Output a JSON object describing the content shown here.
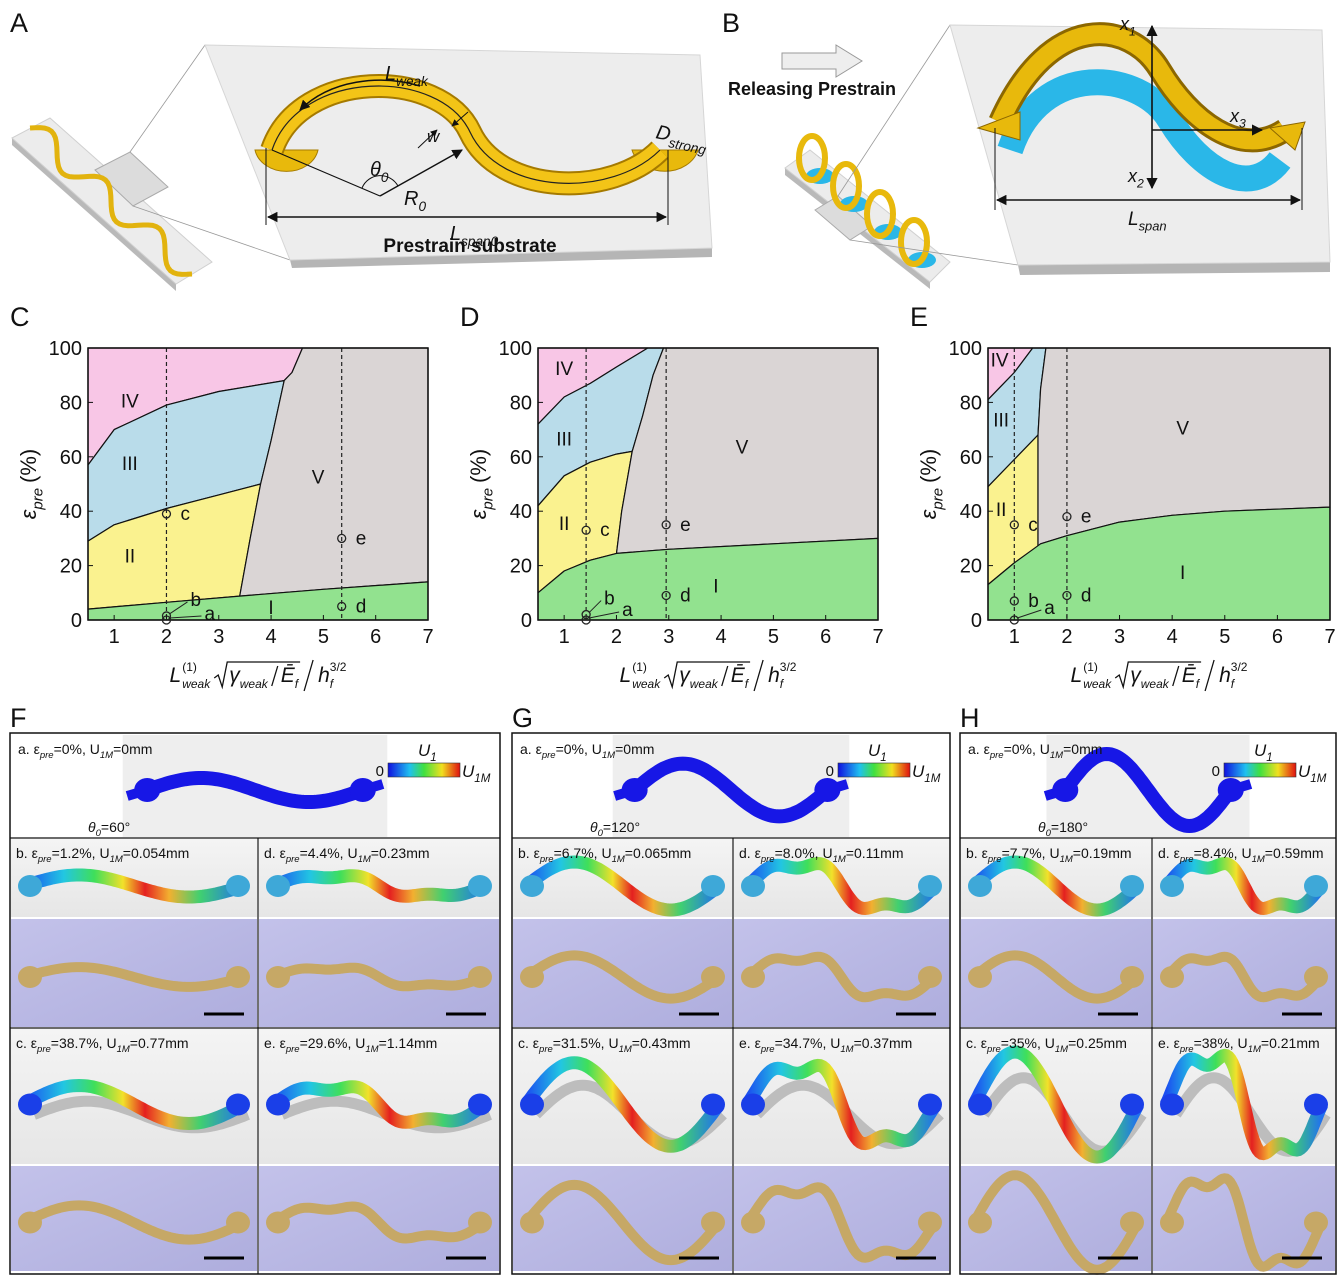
{
  "panel_a": {
    "letter": "A",
    "l_weak": [
      "L",
      "weak"
    ],
    "w": "w",
    "theta0": [
      "θ",
      "0"
    ],
    "r0": [
      "R",
      "0"
    ],
    "d_strong": [
      "D",
      "strong"
    ],
    "l_span0": [
      "L",
      "span0"
    ],
    "substrate": "Prestrain substrate"
  },
  "panel_b": {
    "letter": "B",
    "releasing": "Releasing Prestrain",
    "x1": [
      "x",
      "1"
    ],
    "x2": [
      "x",
      "2"
    ],
    "x3": [
      "x",
      "3"
    ],
    "l_span": [
      "L",
      "span"
    ]
  },
  "chart_data": [
    {
      "letter": "C",
      "type": "area",
      "xlim": [
        0.5,
        7
      ],
      "ylim": [
        0,
        100
      ],
      "xticks": [
        1,
        2,
        3,
        4,
        5,
        6,
        7
      ],
      "yticks": [
        0,
        20,
        40,
        60,
        80,
        100
      ],
      "y_label": [
        "ε",
        "pre",
        "(%)"
      ],
      "x_label": [
        "L",
        "(1)",
        "weak",
        "γ",
        "weak",
        "Ē",
        "f",
        "h",
        "f",
        "3/2"
      ],
      "regions": [
        {
          "name": "IV",
          "color": "#f8c6e6",
          "x": [
            0.5,
            1,
            2,
            3,
            4.25,
            4.4,
            4.6,
            0.5
          ],
          "y": [
            57,
            70,
            79,
            84,
            88,
            91,
            100,
            100
          ]
        },
        {
          "name": "III",
          "color": "#b9dcea",
          "x": [
            0.5,
            1,
            2,
            3,
            3.8,
            4.0,
            4.25,
            3,
            2,
            1,
            0.5
          ],
          "y": [
            29,
            35,
            41,
            46,
            50,
            66,
            88,
            84,
            79,
            70,
            57
          ]
        },
        {
          "name": "II",
          "color": "#faf28f",
          "x": [
            0.5,
            2,
            3.4,
            3.6,
            3.8,
            3,
            2,
            1,
            0.5
          ],
          "y": [
            4,
            6.5,
            8.8,
            30,
            50,
            46,
            41,
            35,
            29
          ]
        },
        {
          "name": "V",
          "color": "#dad5d5",
          "x": [
            3.4,
            5,
            7,
            7,
            4.6,
            4.4,
            4.25,
            4.0,
            3.8,
            3.6
          ],
          "y": [
            8.8,
            11.3,
            14,
            100,
            100,
            91,
            88,
            66,
            50,
            30
          ]
        },
        {
          "name": "I",
          "color": "#92e28f",
          "x": [
            0.5,
            7,
            7,
            5,
            3.4,
            2,
            0.5
          ],
          "y": [
            0,
            0,
            14,
            11.3,
            8.8,
            6.5,
            4
          ]
        }
      ],
      "guides": [
        2,
        5.35
      ],
      "points": {
        "labels": [
          "a",
          "b",
          "c",
          "d",
          "e"
        ],
        "x": [
          2,
          2,
          2,
          5.35,
          5.35
        ],
        "y": [
          0,
          1.5,
          39,
          5,
          30
        ]
      }
    },
    {
      "letter": "D",
      "type": "area",
      "xlim": [
        0.5,
        7
      ],
      "ylim": [
        0,
        100
      ],
      "xticks": [
        1,
        2,
        3,
        4,
        5,
        6,
        7
      ],
      "yticks": [
        0,
        20,
        40,
        60,
        80,
        100
      ],
      "y_label": [
        "ε",
        "pre",
        "(%)"
      ],
      "x_label": [
        "L",
        "(1)",
        "weak",
        "γ",
        "weak",
        "Ē",
        "f",
        "h",
        "f",
        "3/2"
      ],
      "regions": [
        {
          "name": "IV",
          "color": "#f8c6e6",
          "x": [
            0.5,
            1,
            1.5,
            2,
            2.6,
            0.5
          ],
          "y": [
            72,
            82,
            87,
            93,
            100,
            100
          ]
        },
        {
          "name": "III",
          "color": "#b9dcea",
          "x": [
            0.5,
            1,
            1.5,
            2,
            2.3,
            2.5,
            2.7,
            2.9,
            2.6,
            2,
            1.5,
            1,
            0.5
          ],
          "y": [
            42,
            53,
            58,
            61,
            62,
            75,
            90,
            100,
            100,
            93,
            87,
            82,
            72
          ]
        },
        {
          "name": "II",
          "color": "#faf28f",
          "x": [
            0.5,
            1,
            1.5,
            2,
            2.1,
            2.3,
            2,
            1.5,
            1,
            0.5
          ],
          "y": [
            10,
            18,
            22,
            24.5,
            40,
            62,
            61,
            58,
            53,
            42
          ]
        },
        {
          "name": "V",
          "color": "#dad5d5",
          "x": [
            2,
            3,
            5,
            7,
            7,
            2.9,
            2.7,
            2.5,
            2.3,
            2.1
          ],
          "y": [
            24.5,
            26,
            28,
            30,
            100,
            100,
            90,
            75,
            62,
            40
          ]
        },
        {
          "name": "I",
          "color": "#92e28f",
          "x": [
            0.5,
            7,
            7,
            5,
            3,
            2,
            1.5,
            1,
            0.5
          ],
          "y": [
            0,
            0,
            30,
            28,
            26,
            24.5,
            22,
            18,
            10
          ]
        }
      ],
      "guides": [
        1.42,
        2.95
      ],
      "points": {
        "labels": [
          "a",
          "b",
          "c",
          "d",
          "e"
        ],
        "x": [
          1.42,
          1.42,
          1.42,
          2.95,
          2.95
        ],
        "y": [
          0,
          2,
          33,
          9,
          35
        ]
      }
    },
    {
      "letter": "E",
      "type": "area",
      "xlim": [
        0.5,
        7
      ],
      "ylim": [
        0,
        100
      ],
      "xticks": [
        1,
        2,
        3,
        4,
        5,
        6,
        7
      ],
      "yticks": [
        0,
        20,
        40,
        60,
        80,
        100
      ],
      "y_label": [
        "ε",
        "pre",
        "(%)"
      ],
      "x_label": [
        "L",
        "(1)",
        "weak",
        "γ",
        "weak",
        "Ē",
        "f",
        "h",
        "f",
        "3/2"
      ],
      "regions": [
        {
          "name": "IV",
          "color": "#f8c6e6",
          "x": [
            0.5,
            1,
            1.35,
            0.5
          ],
          "y": [
            81,
            91,
            100,
            100
          ]
        },
        {
          "name": "III",
          "color": "#b9dcea",
          "x": [
            0.5,
            1,
            1.45,
            1.5,
            1.6,
            1.35,
            1,
            0.5
          ],
          "y": [
            49,
            59,
            68,
            85,
            100,
            100,
            91,
            81
          ]
        },
        {
          "name": "II",
          "color": "#faf28f",
          "x": [
            0.5,
            1,
            1.45,
            1.45,
            1,
            0.5
          ],
          "y": [
            13,
            21,
            27,
            68,
            59,
            49
          ]
        },
        {
          "name": "V",
          "color": "#dad5d5",
          "x": [
            1.45,
            1.5,
            2,
            3,
            4,
            5,
            7,
            7,
            1.6,
            1.5,
            1.45
          ],
          "y": [
            27,
            28,
            31,
            36,
            38.5,
            40,
            41.5,
            100,
            100,
            85,
            68
          ]
        },
        {
          "name": "I",
          "color": "#92e28f",
          "x": [
            0.5,
            7,
            7,
            5,
            4,
            3,
            2,
            1.5,
            1,
            0.5
          ],
          "y": [
            0,
            0,
            41.5,
            40,
            38.5,
            36,
            31,
            28,
            21,
            13
          ]
        }
      ],
      "guides": [
        1,
        2
      ],
      "points": {
        "labels": [
          "a",
          "b",
          "c",
          "d",
          "e"
        ],
        "x": [
          1,
          1,
          1,
          2,
          2
        ],
        "y": [
          0,
          7,
          35,
          9,
          38
        ]
      }
    }
  ],
  "figure_panels": [
    {
      "letter": "F",
      "theta": [
        "θ",
        "0",
        "=60°"
      ],
      "legend": {
        "title": [
          "U",
          "1"
        ],
        "zero": "0",
        "max": [
          "U",
          "1M"
        ]
      },
      "cases": {
        "a": [
          "a. ε",
          "pre",
          "=0%, U",
          "1M",
          "=0mm"
        ],
        "b": [
          "b. ε",
          "pre",
          "=1.2%, U",
          "1M",
          "=0.054mm"
        ],
        "d": [
          "d. ε",
          "pre",
          "=4.4%, U",
          "1M",
          "=0.23mm"
        ],
        "c": [
          "c. ε",
          "pre",
          "=38.7%, U",
          "1M",
          "=0.77mm"
        ],
        "e": [
          "e. ε",
          "pre",
          "=29.6%, U",
          "1M",
          "=1.14mm"
        ]
      }
    },
    {
      "letter": "G",
      "theta": [
        "θ",
        "0",
        "=120°"
      ],
      "legend": {
        "title": [
          "U",
          "1"
        ],
        "zero": "0",
        "max": [
          "U",
          "1M"
        ]
      },
      "cases": {
        "a": [
          "a. ε",
          "pre",
          "=0%, U",
          "1M",
          "=0mm"
        ],
        "b": [
          "b. ε",
          "pre",
          "=6.7%, U",
          "1M",
          "=0.065mm"
        ],
        "d": [
          "d. ε",
          "pre",
          "=8.0%, U",
          "1M",
          "=0.11mm"
        ],
        "c": [
          "c. ε",
          "pre",
          "=31.5%, U",
          "1M",
          "=0.43mm"
        ],
        "e": [
          "e. ε",
          "pre",
          "=34.7%, U",
          "1M",
          "=0.37mm"
        ]
      }
    },
    {
      "letter": "H",
      "theta": [
        "θ",
        "0",
        "=180°"
      ],
      "legend": {
        "title": [
          "U",
          "1"
        ],
        "zero": "0",
        "max": [
          "U",
          "1M"
        ]
      },
      "cases": {
        "a": [
          "a. ε",
          "pre",
          "=0%, U",
          "1M",
          "=0mm"
        ],
        "b": [
          "b. ε",
          "pre",
          "=7.7%, U",
          "1M",
          "=0.19mm"
        ],
        "d": [
          "d. ε",
          "pre",
          "=8.4%, U",
          "1M",
          "=0.59mm"
        ],
        "c": [
          "c. ε",
          "pre",
          "=35%, U",
          "1M",
          "=0.25mm"
        ],
        "e": [
          "e. ε",
          "pre",
          "=38%, U",
          "1M",
          "=0.21mm"
        ]
      }
    }
  ]
}
